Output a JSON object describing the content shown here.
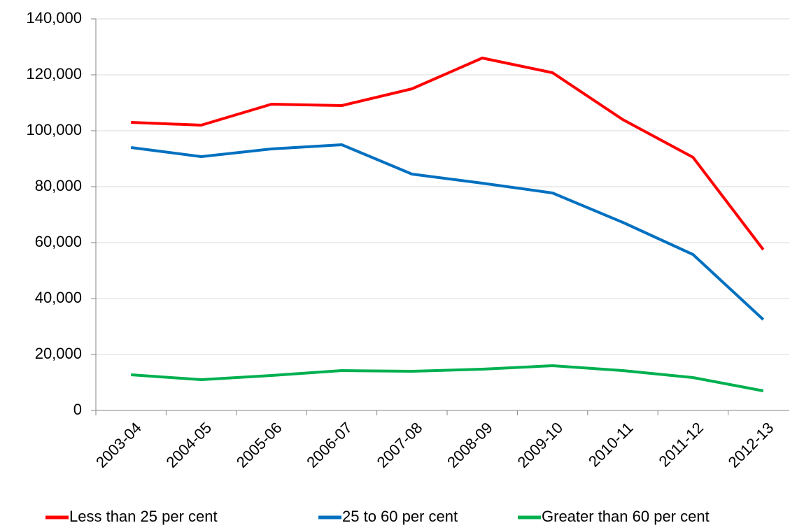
{
  "chart_data": {
    "type": "line",
    "categories": [
      "2003-04",
      "2004-05",
      "2005-06",
      "2006-07",
      "2007-08",
      "2008-09",
      "2009-10",
      "2010-11",
      "2011-12",
      "2012-13"
    ],
    "series": [
      {
        "name": "Less than 25 per cent",
        "color": "#ff0000",
        "values": [
          103000,
          102000,
          109500,
          109000,
          115000,
          126000,
          120750,
          104000,
          90500,
          57500
        ]
      },
      {
        "name": "25 to 60 per cent",
        "color": "#0070c0",
        "values": [
          94000,
          90750,
          93500,
          95000,
          84500,
          81250,
          77750,
          67250,
          55750,
          32500
        ]
      },
      {
        "name": "Greater than 60 per cent",
        "color": "#00b050",
        "values": [
          12750,
          11000,
          12500,
          14250,
          14000,
          14750,
          16000,
          14250,
          11750,
          7000
        ]
      }
    ],
    "ylim": [
      0,
      140000
    ],
    "yticks": [
      0,
      {
        "value": 20000,
        "label": "20,000"
      },
      {
        "value": 40000,
        "label": "40,000"
      },
      {
        "value": 60000,
        "label": "60,000"
      },
      {
        "value": 80000,
        "label": "80,000"
      },
      {
        "value": 100000,
        "label": "100,000"
      },
      {
        "value": 120000,
        "label": "120,000"
      },
      {
        "value": 140000,
        "label": "140,000"
      }
    ],
    "grid": true,
    "legend": "bottom"
  }
}
